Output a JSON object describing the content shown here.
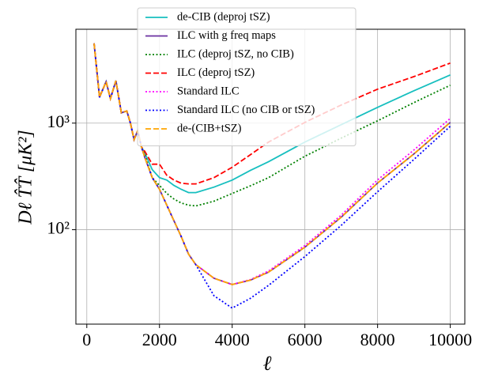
{
  "chart_data": {
    "type": "line",
    "xlabel": "ℓ",
    "ylabel": "Dℓ T̂T̂ [μK²]",
    "x": [
      200,
      350,
      530,
      650,
      800,
      950,
      1100,
      1200,
      1300,
      1400,
      1500,
      1600,
      1800,
      2000,
      2200,
      2400,
      2600,
      2800,
      3000,
      3500,
      4000,
      4500,
      5000,
      6000,
      7000,
      8000,
      9000,
      10000
    ],
    "series": [
      {
        "name": "de-CIB (deproj tSZ)",
        "color": "#17bfbf",
        "linestyle": "solid",
        "values": [
          5600,
          1750,
          2450,
          1700,
          2500,
          1250,
          1300,
          1000,
          700,
          850,
          600,
          520,
          366,
          308,
          292,
          260,
          239,
          223,
          223,
          251,
          292,
          360,
          434,
          664,
          967,
          1406,
          2013,
          2830
        ]
      },
      {
        "name": "ILC with g freq maps",
        "color": "#6a2fa0",
        "linestyle": "solid",
        "values": [
          5600,
          1750,
          2450,
          1700,
          2500,
          1250,
          1300,
          1000,
          700,
          850,
          600,
          472,
          308,
          239,
          170,
          121,
          86,
          59,
          47,
          35,
          30.6,
          33.6,
          40,
          68.5,
          131,
          274,
          514,
          1017
        ]
      },
      {
        "name": "ILC (deproj tSZ, no CIB)",
        "color": "#008000",
        "linestyle": "dotted",
        "values": [
          5600,
          1750,
          2450,
          1700,
          2500,
          1250,
          1300,
          1000,
          700,
          850,
          600,
          500,
          308,
          260,
          219,
          194,
          178,
          170,
          167,
          185,
          219,
          258,
          308,
          489,
          723,
          1052,
          1558,
          2266
        ]
      },
      {
        "name": "ILC (deproj tSZ)",
        "color": "#ff0000",
        "linestyle": "dashed",
        "values": [
          5600,
          1750,
          2450,
          1700,
          2500,
          1250,
          1300,
          1000,
          700,
          850,
          600,
          540,
          412,
          412,
          324,
          292,
          273,
          269,
          269,
          308,
          385,
          505,
          664,
          1017,
          1480,
          2081,
          2734,
          3656
        ]
      },
      {
        "name": "Standard ILC",
        "color": "#ff00ff",
        "linestyle": "dotted",
        "values": [
          5600,
          1750,
          2450,
          1700,
          2500,
          1250,
          1300,
          1000,
          700,
          850,
          600,
          472,
          308,
          239,
          170,
          121,
          86,
          59,
          47,
          35,
          30.6,
          34,
          41,
          71,
          137,
          293,
          560,
          1108
        ]
      },
      {
        "name": "Standard ILC (no CIB or tSZ)",
        "color": "#0000ff",
        "linestyle": "dotted",
        "values": [
          5600,
          1750,
          2450,
          1700,
          2500,
          1250,
          1300,
          1000,
          700,
          850,
          600,
          472,
          308,
          239,
          170,
          121,
          86,
          59,
          47,
          24,
          18.4,
          22.7,
          30,
          56,
          110,
          227,
          456,
          934
        ]
      },
      {
        "name": "de-(CIB+tSZ)",
        "color": "#ffa500",
        "linestyle": "dashed",
        "values": [
          5600,
          1750,
          2450,
          1700,
          2500,
          1250,
          1300,
          1000,
          700,
          850,
          600,
          472,
          308,
          239,
          170,
          121,
          86,
          59,
          47,
          35,
          30.6,
          33.6,
          40,
          68.5,
          131,
          274,
          514,
          1017
        ]
      }
    ],
    "xlim": [
      -300,
      10400
    ],
    "ylim": [
      13,
      7600
    ],
    "xticks": [
      0,
      2000,
      4000,
      6000,
      8000,
      10000
    ],
    "yticks": [
      {
        "value": 100,
        "label": "10²"
      },
      {
        "value": 1000,
        "label": "10³"
      }
    ],
    "log_y": true,
    "grid": true,
    "legend": "upper center"
  }
}
